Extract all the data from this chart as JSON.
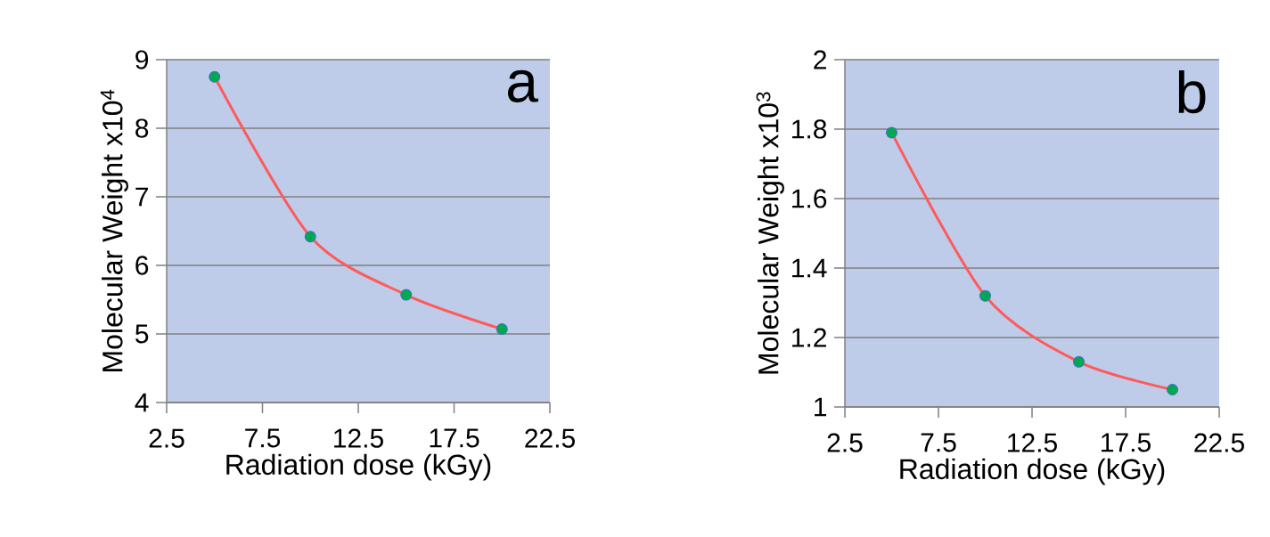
{
  "chart_data": [
    {
      "type": "line",
      "x": [
        5,
        10,
        15,
        20
      ],
      "series": [
        {
          "color": "#ff5a5a",
          "values": [
            8.75,
            6.42,
            5.57,
            5.07
          ]
        }
      ],
      "xlim": [
        2.5,
        22.5
      ],
      "ylim": [
        4,
        9
      ],
      "xticks": [
        2.5,
        7.5,
        12.5,
        17.5,
        22.5
      ],
      "yticks": [
        4,
        5,
        6,
        7,
        8,
        9
      ],
      "xlabel": "Radiation dose (kGy)",
      "ylabel": "Molecular Weight  x10$^{4}$",
      "annotations": [
        "a"
      ],
      "grid": "y",
      "marker": "circle"
    },
    {
      "type": "line",
      "x": [
        5,
        10,
        15,
        20
      ],
      "series": [
        {
          "color": "#ff5a5a",
          "values": [
            1.79,
            1.32,
            1.13,
            1.05
          ]
        }
      ],
      "xlim": [
        2.5,
        22.5
      ],
      "ylim": [
        1,
        2
      ],
      "xticks": [
        2.5,
        7.5,
        12.5,
        17.5,
        22.5
      ],
      "yticks": [
        1,
        1.2,
        1.4,
        1.6,
        1.8,
        2
      ],
      "xlabel": "Radiation dose (kGy)",
      "ylabel": "Molecular Weight x10$^{3}$",
      "annotations": [
        "b"
      ],
      "grid": "y",
      "marker": "circle"
    }
  ]
}
